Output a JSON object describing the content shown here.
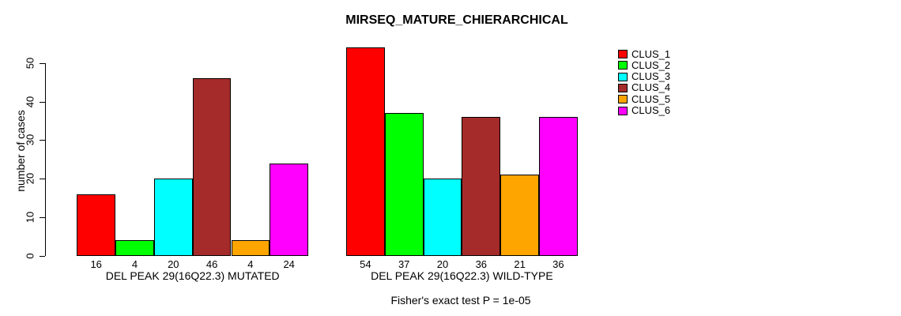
{
  "chart_data": {
    "type": "bar",
    "title": "MIRSEQ_MATURE_CHIERARCHICAL",
    "ylabel": "number of cases",
    "xlabel": "",
    "annotation": "Fisher's exact test P = 1e-05",
    "ylim": [
      0,
      55
    ],
    "yticks": [
      0,
      10,
      20,
      30,
      40,
      50
    ],
    "grid": false,
    "legend_position": "top-right-outside",
    "bar_borders": true,
    "value_labels_shown": true,
    "categories": [
      "DEL PEAK 29(16Q22.3) MUTATED",
      "DEL PEAK 29(16Q22.3) WILD-TYPE"
    ],
    "series": [
      {
        "name": "CLUS_1",
        "color": "#FF0000",
        "values": [
          16,
          54
        ]
      },
      {
        "name": "CLUS_2",
        "color": "#00FF00",
        "values": [
          4,
          37
        ]
      },
      {
        "name": "CLUS_3",
        "color": "#00FFFF",
        "values": [
          20,
          20
        ]
      },
      {
        "name": "CLUS_4",
        "color": "#A52A2A",
        "values": [
          46,
          36
        ]
      },
      {
        "name": "CLUS_5",
        "color": "#FFA500",
        "values": [
          4,
          21
        ]
      },
      {
        "name": "CLUS_6",
        "color": "#FF00FF",
        "values": [
          24,
          36
        ]
      }
    ]
  }
}
